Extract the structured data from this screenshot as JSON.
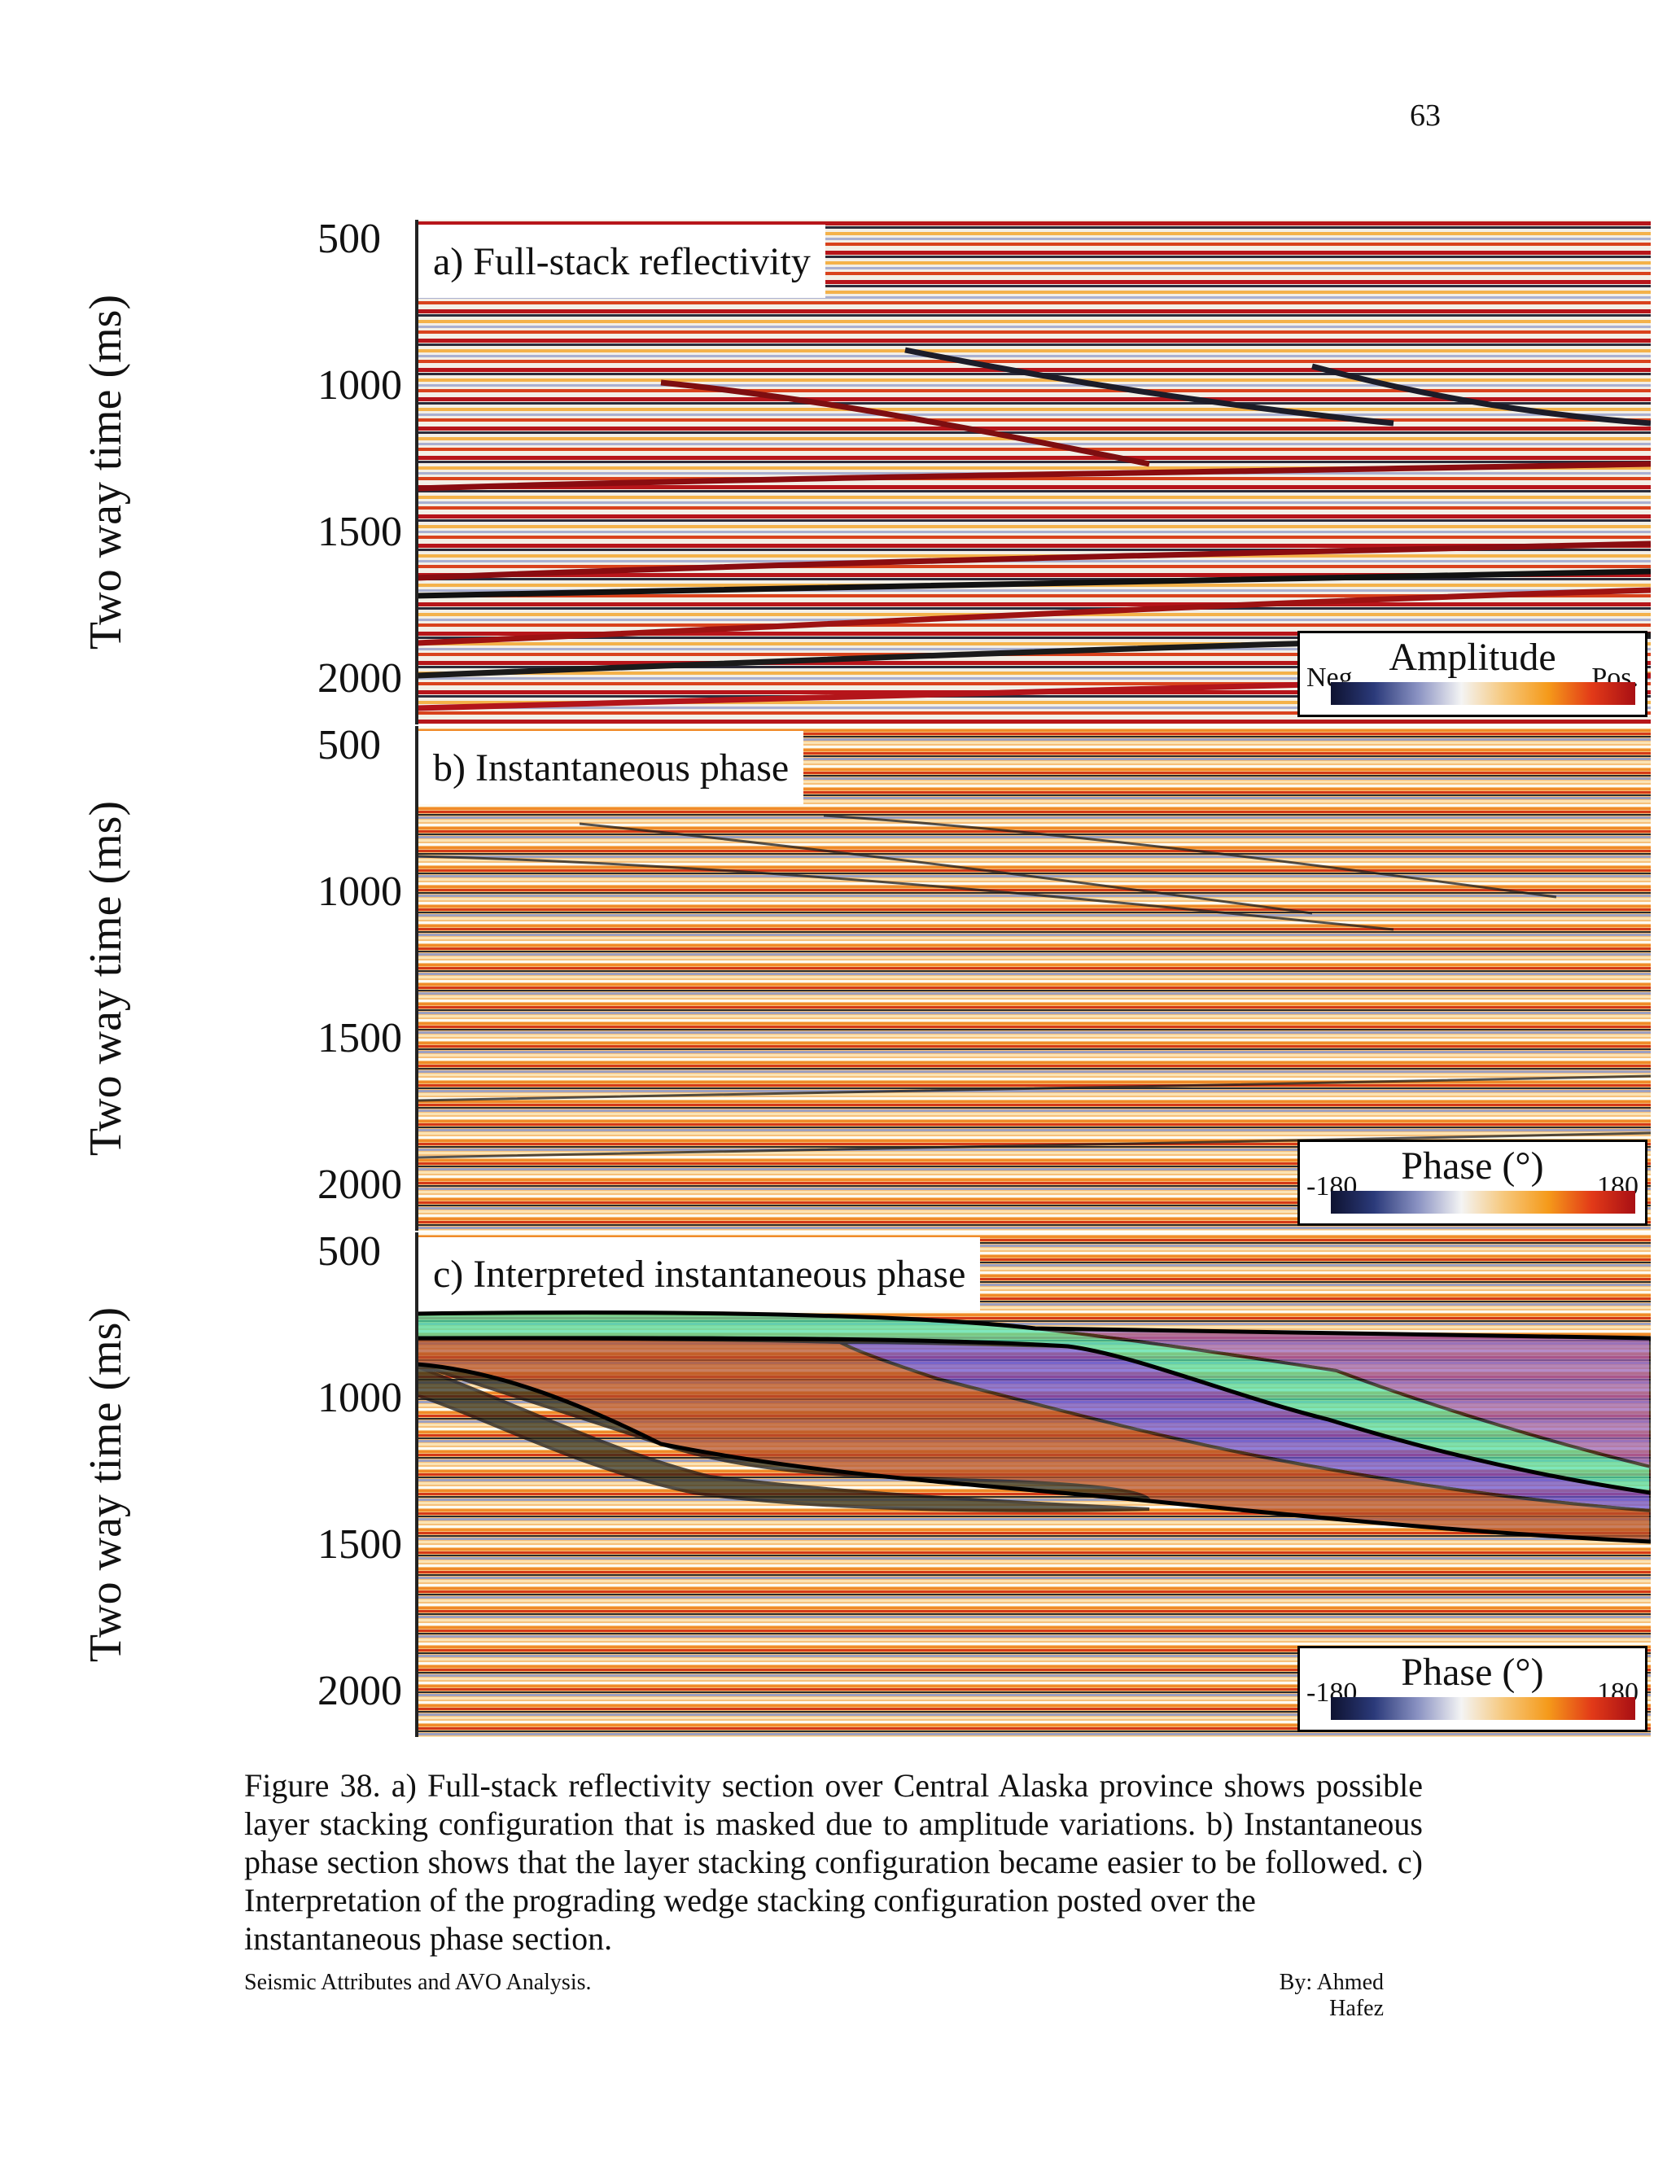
{
  "page_number": "63",
  "y_axis": {
    "label": "Two way time (ms)",
    "ticks": [
      "500",
      "1000",
      "1500",
      "2000"
    ]
  },
  "panels": [
    {
      "title": "a) Full-stack reflectivity",
      "attribute": "amplitude",
      "legend": {
        "title": "Amplitude",
        "min_label": "Neg.",
        "max_label": "Pos."
      }
    },
    {
      "title": "b) Instantaneous phase",
      "attribute": "phase",
      "legend": {
        "title": "Phase (°)",
        "min_label": "-180",
        "max_label": "180"
      }
    },
    {
      "title": "c) Interpreted instantaneous phase",
      "attribute": "interpreted-phase",
      "legend": {
        "title": "Phase (°)",
        "min_label": "-180",
        "max_label": "180"
      }
    }
  ],
  "colorbar": {
    "stops": [
      "#0e1230",
      "#2b3a7a",
      "#8a92c2",
      "#f4f4f4",
      "#f6c77a",
      "#f59a1a",
      "#e23a18",
      "#a80f14"
    ]
  },
  "interpretation_colors": {
    "unit_green": "#4fe0a8",
    "unit_purple": "#6a4fd0",
    "unit_brown": "#b4502a",
    "unit_dark": "#2a2a1a",
    "unit_mauve": "#9a62b8"
  },
  "caption": {
    "body": "Figure 38. a) Full-stack reflectivity section over Central Alaska province shows possible layer stacking configuration that is masked due to amplitude variations. b) Instantaneous phase section shows that the layer stacking configuration became easier to be followed. c) Interpretation of the prograding wedge stacking configuration posted over the",
    "last_line": "instantaneous phase section."
  },
  "footer": {
    "left": "Seismic Attributes and AVO Analysis.",
    "right": "By: Ahmed Hafez"
  }
}
